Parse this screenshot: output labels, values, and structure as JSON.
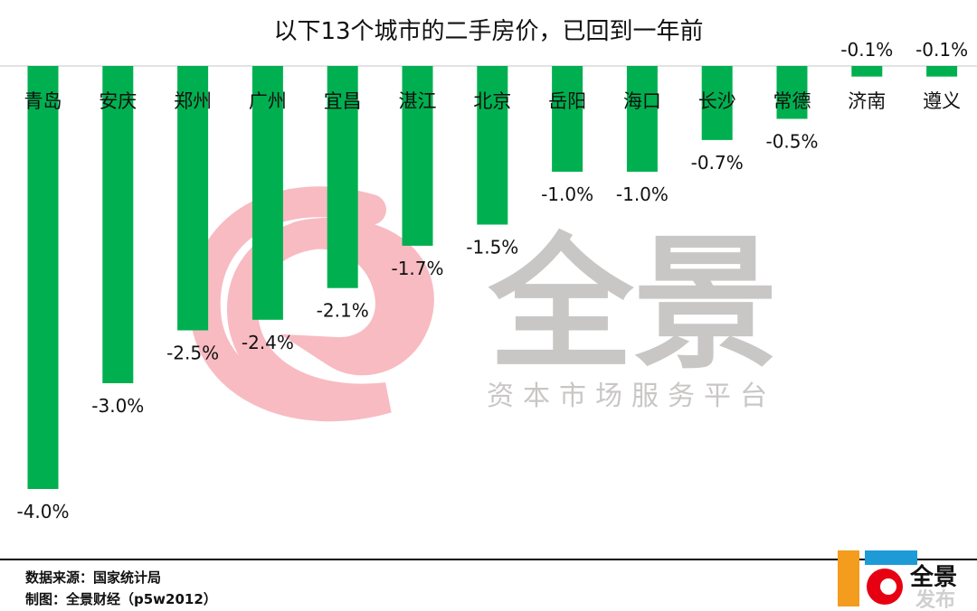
{
  "chart_data": {
    "type": "bar",
    "title": "以下13个城市的二手房价，已回到一年前",
    "categories": [
      "青岛",
      "安庆",
      "郑州",
      "广州",
      "宜昌",
      "湛江",
      "北京",
      "岳阳",
      "海口",
      "长沙",
      "常德",
      "济南",
      "遵义"
    ],
    "values": [
      -4.0,
      -3.0,
      -2.5,
      -2.4,
      -2.1,
      -1.7,
      -1.5,
      -1.0,
      -1.0,
      -0.7,
      -0.5,
      -0.1,
      -0.1
    ],
    "data_labels": [
      "-4.0%",
      "-3.0%",
      "-2.5%",
      "-2.4%",
      "-2.1%",
      "-1.7%",
      "-1.5%",
      "-1.0%",
      "-1.0%",
      "-0.7%",
      "-0.5%",
      "-0.1%",
      "-0.1%"
    ],
    "ylim": [
      -4.0,
      0
    ],
    "xlabel": "",
    "ylabel": "",
    "grid": false,
    "legend": "none",
    "bar_color": "#00b050"
  },
  "watermark": {
    "brand": "全景",
    "slogan": "资本市场服务平台",
    "colors": {
      "swirl": "#f4a6ae",
      "text": "#b9b4b4"
    }
  },
  "footer": {
    "source": "数据来源：国家统计局",
    "credit": "制图：全景财经（p5w2012）"
  },
  "logo": {
    "text1": "全景",
    "text2": "发布",
    "colors": {
      "orange": "#f39c1d",
      "red": "#e60012",
      "blue": "#1e9bd7"
    }
  }
}
